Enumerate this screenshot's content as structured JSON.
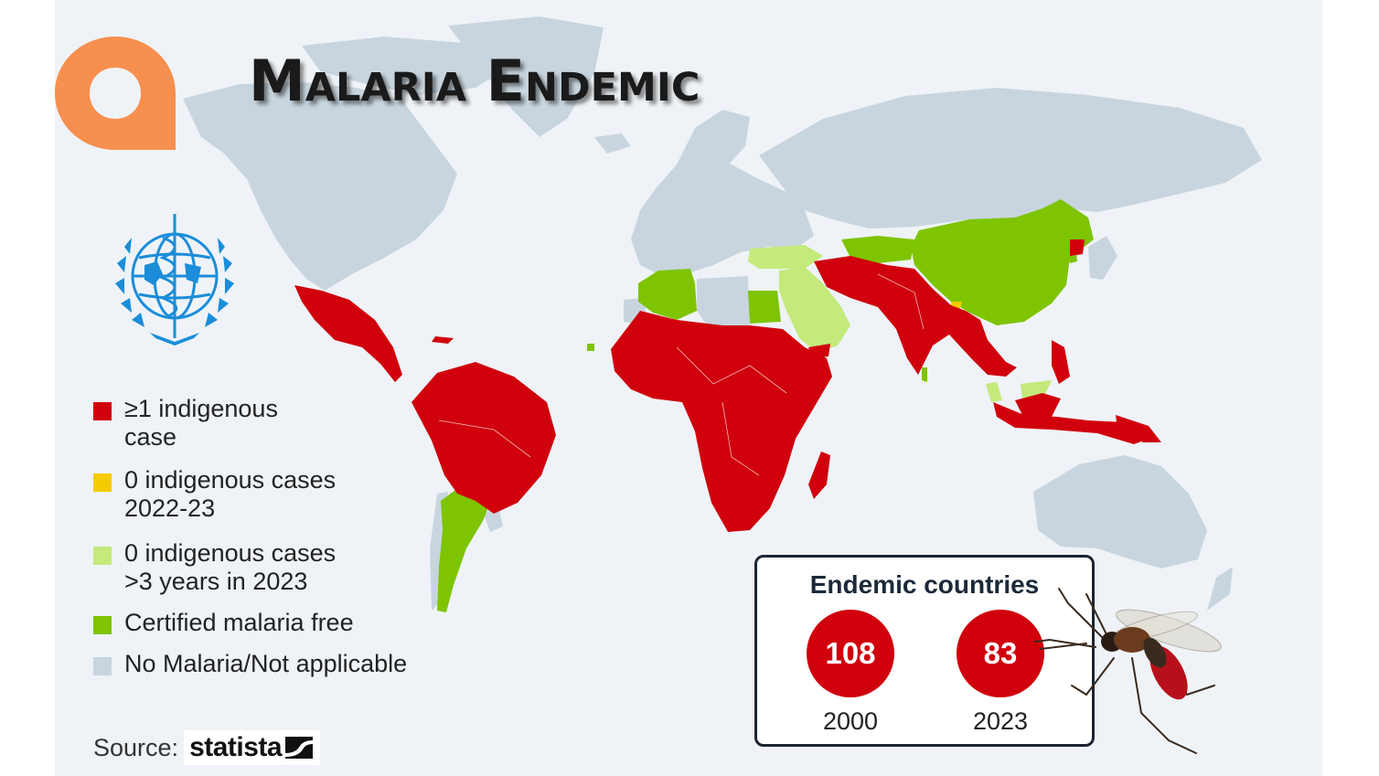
{
  "title": "Malaria Endemic",
  "colors": {
    "endemic": "#d0000c",
    "zero_recent": "#f5cb00",
    "zero_3yrs": "#c3ea7a",
    "certified": "#7ec400",
    "not_applicable": "#c8d5de",
    "ocean": "#eff3f7",
    "logo_orange": "#f78f4f",
    "who_blue": "#1b8dd9"
  },
  "icons": [
    "app-logo-icon",
    "who-emblem-icon",
    "statista-logo-icon",
    "mosquito-icon"
  ],
  "legend": [
    {
      "line1": "≥1 indigenous",
      "line2": "case",
      "color": "#d0000c"
    },
    {
      "line1": "0 indigenous cases",
      "line2": "2022-23",
      "color": "#f5cb00"
    },
    {
      "line1": "0 indigenous cases",
      "line2": ">3 years in 2023",
      "color": "#c3ea7a"
    },
    {
      "line1": "Certified malaria free",
      "line2": "",
      "color": "#7ec400"
    },
    {
      "line1": "No Malaria/Not applicable",
      "line2": "",
      "color": "#c8d5de"
    }
  ],
  "source": {
    "label": "Source:",
    "brand": "statista"
  },
  "endemic_countries": {
    "title": "Endemic countries",
    "stats": [
      {
        "value": "108",
        "year": "2000"
      },
      {
        "value": "83",
        "year": "2023"
      }
    ]
  }
}
